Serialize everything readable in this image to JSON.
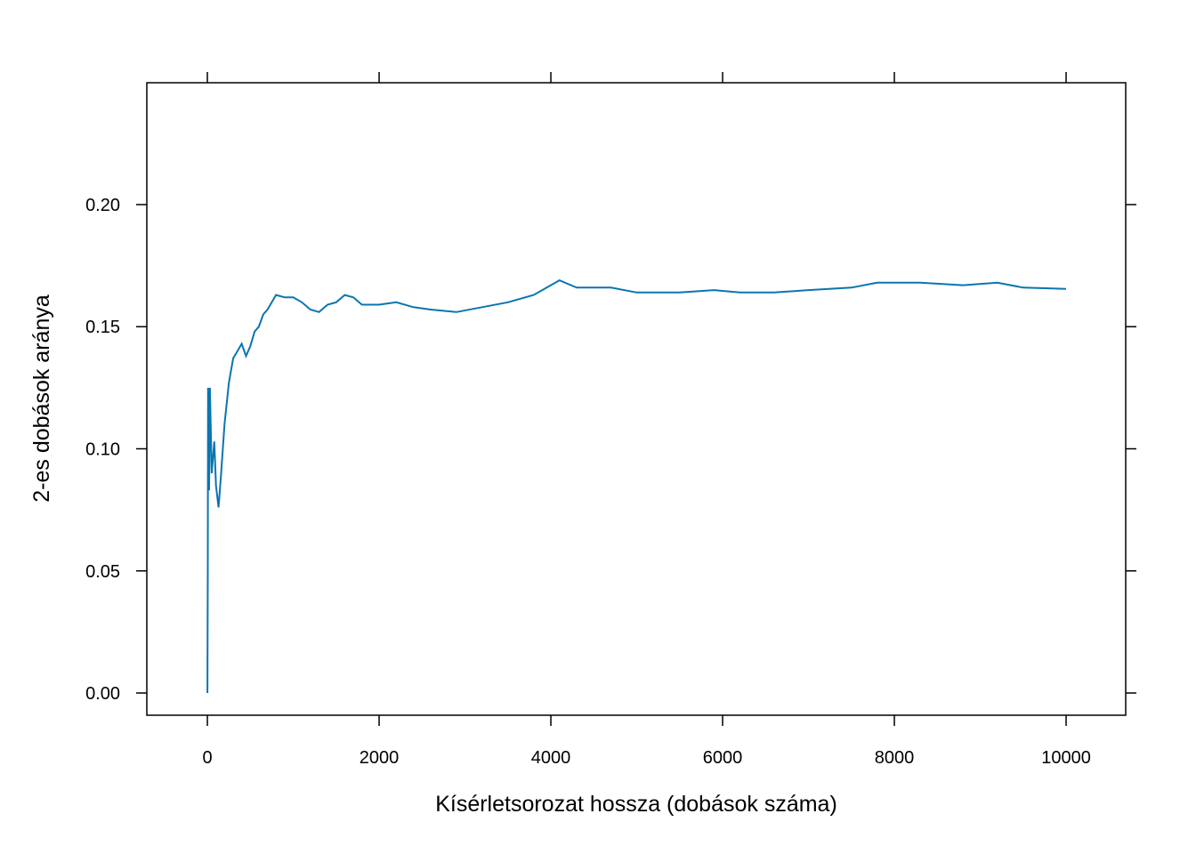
{
  "chart_data": {
    "type": "line",
    "xlabel": "Kísérletsorozat hossza (dobások száma)",
    "ylabel": "2-es dobások aránya",
    "xlim": [
      -705,
      10694
    ],
    "ylim": [
      -0.0091,
      0.2499
    ],
    "xticks": [
      0,
      2000,
      4000,
      6000,
      8000,
      10000
    ],
    "yticks": [
      {
        "value": 0,
        "label": "0.00"
      },
      {
        "value": 0.05,
        "label": "0.05"
      },
      {
        "value": 0.1,
        "label": "0.10"
      },
      {
        "value": 0.15,
        "label": "0.15"
      },
      {
        "value": 0.2,
        "label": "0.20"
      }
    ],
    "grid": false,
    "series": [
      {
        "color": "#0a75b0",
        "x": [
          1,
          5,
          8,
          20,
          30,
          50,
          80,
          100,
          130,
          160,
          200,
          250,
          300,
          350,
          400,
          450,
          500,
          550,
          600,
          650,
          700,
          750,
          800,
          900,
          1000,
          1100,
          1200,
          1300,
          1400,
          1500,
          1600,
          1700,
          1800,
          2000,
          2200,
          2400,
          2600,
          2900,
          3200,
          3500,
          3800,
          4100,
          4300,
          4700,
          5000,
          5500,
          5900,
          6200,
          6600,
          7000,
          7500,
          7800,
          8300,
          8800,
          9200,
          9500,
          10000
        ],
        "values": [
          0,
          0.05,
          0.125,
          0.083,
          0.125,
          0.09,
          0.103,
          0.085,
          0.076,
          0.09,
          0.11,
          0.127,
          0.137,
          0.14,
          0.143,
          0.138,
          0.142,
          0.148,
          0.15,
          0.155,
          0.157,
          0.16,
          0.163,
          0.162,
          0.162,
          0.16,
          0.157,
          0.156,
          0.159,
          0.16,
          0.163,
          0.162,
          0.159,
          0.159,
          0.16,
          0.158,
          0.157,
          0.156,
          0.158,
          0.16,
          0.163,
          0.169,
          0.166,
          0.166,
          0.164,
          0.164,
          0.165,
          0.164,
          0.164,
          0.165,
          0.166,
          0.168,
          0.168,
          0.167,
          0.168,
          0.166,
          0.1655
        ]
      }
    ]
  }
}
